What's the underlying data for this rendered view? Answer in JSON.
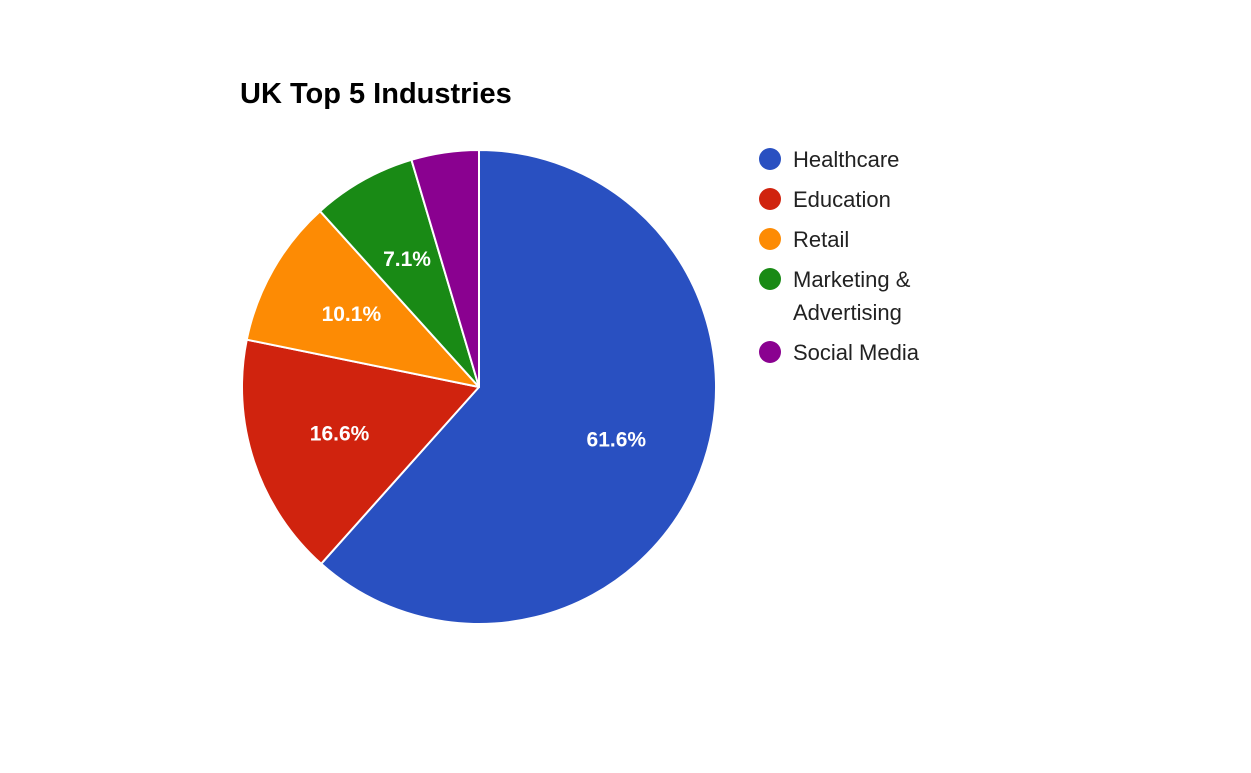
{
  "chart_data": {
    "type": "pie",
    "title": "UK Top 5 Industries",
    "legend_position": "right",
    "slices": [
      {
        "label": "Healthcare",
        "value": 61.6,
        "value_label": "61.6%",
        "color": "#2950c1",
        "legend_lines": [
          "Healthcare"
        ]
      },
      {
        "label": "Education",
        "value": 16.6,
        "value_label": "16.6%",
        "color": "#d0230e",
        "legend_lines": [
          "Education"
        ]
      },
      {
        "label": "Retail",
        "value": 10.1,
        "value_label": "10.1%",
        "color": "#fd8b04",
        "legend_lines": [
          "Retail"
        ]
      },
      {
        "label": "Marketing & Advertising",
        "value": 7.1,
        "value_label": "7.1%",
        "color": "#198a15",
        "legend_lines": [
          "Marketing &",
          "Advertising"
        ]
      },
      {
        "label": "Social Media",
        "value": 4.6,
        "value_label": "",
        "color": "#8a0190",
        "legend_lines": [
          "Social Media"
        ]
      }
    ]
  }
}
